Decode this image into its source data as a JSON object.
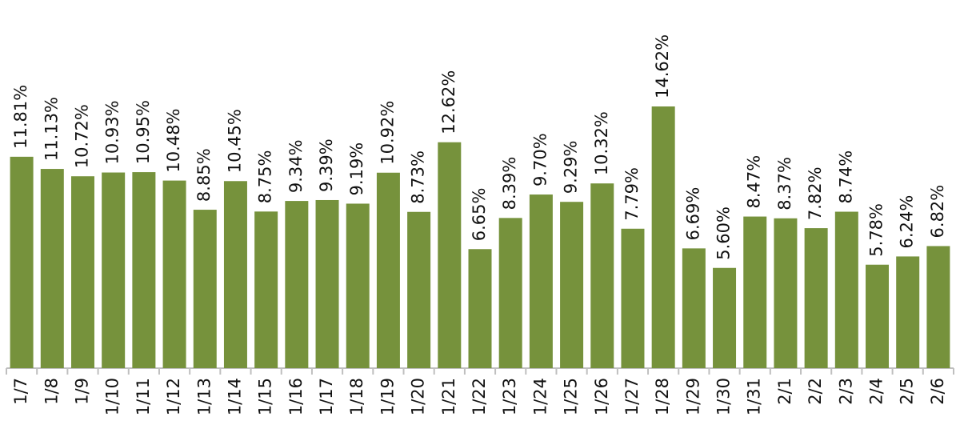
{
  "chart_data": {
    "type": "bar",
    "categories": [
      "1/7",
      "1/8",
      "1/9",
      "1/10",
      "1/11",
      "1/12",
      "1/13",
      "1/14",
      "1/15",
      "1/16",
      "1/17",
      "1/18",
      "1/19",
      "1/20",
      "1/21",
      "1/22",
      "1/23",
      "1/24",
      "1/25",
      "1/26",
      "1/27",
      "1/28",
      "1/29",
      "1/30",
      "1/31",
      "2/1",
      "2/2",
      "2/3",
      "2/4",
      "2/5",
      "2/6"
    ],
    "values": [
      11.81,
      11.13,
      10.72,
      10.93,
      10.95,
      10.48,
      8.85,
      10.45,
      8.75,
      9.34,
      9.39,
      9.19,
      10.92,
      8.73,
      12.62,
      6.65,
      8.39,
      9.7,
      9.29,
      10.32,
      7.79,
      14.62,
      6.69,
      5.6,
      8.47,
      8.37,
      7.82,
      8.74,
      5.78,
      6.24,
      6.82
    ],
    "value_labels": [
      "11.81%",
      "11.13%",
      "10.72%",
      "10.93%",
      "10.95%",
      "10.48%",
      "8.85%",
      "10.45%",
      "8.75%",
      "9.34%",
      "9.39%",
      "9.19%",
      "10.92%",
      "8.73%",
      "12.62%",
      "6.65%",
      "8.39%",
      "9.70%",
      "9.29%",
      "10.32%",
      "7.79%",
      "14.62%",
      "6.69%",
      "5.60%",
      "8.47%",
      "8.37%",
      "7.82%",
      "8.74%",
      "5.78%",
      "6.24%",
      "6.82%"
    ],
    "color": "#76923c"
  }
}
